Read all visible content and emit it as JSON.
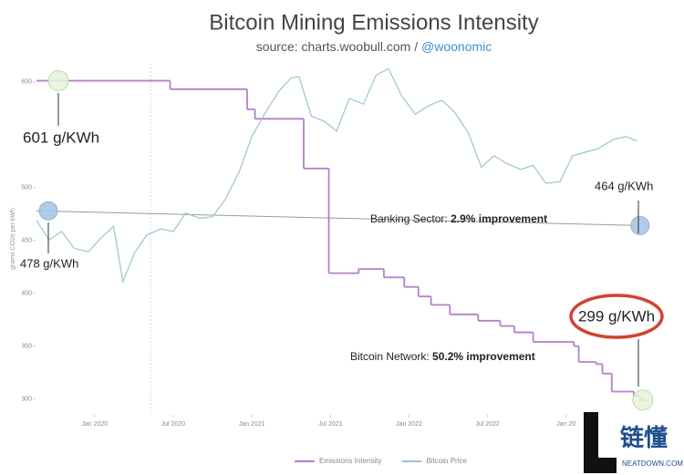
{
  "chart_data": {
    "type": "line",
    "title": "Bitcoin Mining Emissions Intensity",
    "subtitle": {
      "source": "source: charts.woobull.com /",
      "handle": "@woonomic"
    },
    "y_label": "grams CO2e per kWh",
    "xlim": [
      2019.63,
      2023.5
    ],
    "xticks": [
      {
        "value": 2020.0,
        "label": "Jan 2020"
      },
      {
        "value": 2020.5,
        "label": "Jul 2020"
      },
      {
        "value": 2021.0,
        "label": "Jan 2021"
      },
      {
        "value": 2021.5,
        "label": "Jul 2021"
      },
      {
        "value": 2022.0,
        "label": "Jan 2022"
      },
      {
        "value": 2022.5,
        "label": "Jul 2022"
      },
      {
        "value": 2023.0,
        "label": "Jan 20"
      }
    ],
    "ylim": [
      285,
      617
    ],
    "yticks": [
      300,
      350,
      400,
      450,
      500,
      600
    ],
    "y2lim": [
      1000,
      70000
    ],
    "y2log": true,
    "grid": false,
    "series": [
      {
        "name": "Emissions Intensity",
        "color": "#b57fcb",
        "step": "post",
        "x": [
          2019.63,
          2020.01,
          2020.48,
          2020.97,
          2021.02,
          2021.33,
          2021.49,
          2021.68,
          2021.84,
          2021.97,
          2022.06,
          2022.14,
          2022.26,
          2022.44,
          2022.58,
          2022.67,
          2022.79,
          2023.05,
          2023.08,
          2023.19,
          2023.23,
          2023.29,
          2023.43,
          2023.47
        ],
        "values": [
          601,
          601,
          593,
          574,
          565,
          518,
          419,
          423,
          415,
          406,
          397,
          389,
          380,
          374,
          369,
          363,
          354,
          350,
          335,
          333,
          324,
          307,
          303,
          299
        ]
      },
      {
        "name": "Bitcoin Price",
        "color": "#9cc3d3",
        "axis": "y2",
        "x": [
          2019.63,
          2019.71,
          2019.79,
          2019.87,
          2019.96,
          2020.04,
          2020.12,
          2020.18,
          2020.25,
          2020.33,
          2020.42,
          2020.5,
          2020.58,
          2020.67,
          2020.75,
          2020.83,
          2020.92,
          2021.0,
          2021.08,
          2021.17,
          2021.25,
          2021.3,
          2021.38,
          2021.46,
          2021.54,
          2021.62,
          2021.71,
          2021.79,
          2021.87,
          2021.95,
          2022.04,
          2022.12,
          2022.21,
          2022.29,
          2022.38,
          2022.46,
          2022.54,
          2022.62,
          2022.71,
          2022.79,
          2022.87,
          2022.96,
          2023.04,
          2023.12,
          2023.2,
          2023.3,
          2023.38,
          2023.45
        ],
        "values": [
          10500,
          8300,
          9200,
          7500,
          7200,
          8500,
          9800,
          5000,
          7000,
          8800,
          9500,
          9200,
          11500,
          10800,
          11000,
          13500,
          19000,
          29000,
          38000,
          50000,
          59000,
          60000,
          37000,
          35000,
          31000,
          46000,
          43000,
          61000,
          66000,
          48000,
          38000,
          42000,
          45000,
          39000,
          30000,
          20000,
          23000,
          21000,
          19500,
          20500,
          16500,
          16800,
          23000,
          24000,
          25000,
          28000,
          29000,
          27500
        ]
      }
    ],
    "reference_line": {
      "color": "#9a9a9a",
      "x": [
        2019.63,
        2023.47
      ],
      "values": [
        478,
        464
      ]
    },
    "annotations": {
      "emissions_start": "601 g/KWh",
      "emissions_end": "299 g/KWh",
      "banking_start": "478 g/KWh",
      "banking_end": "464 g/KWh",
      "banking": {
        "label": "Banking Sector:",
        "highlight": "2.9% improvement"
      },
      "bitcoin": {
        "label": "Bitcoin Network:",
        "highlight": "50.2% improvement"
      }
    },
    "watermark": {
      "text": "链懂",
      "sub": "NEATDOWN.COM"
    }
  }
}
